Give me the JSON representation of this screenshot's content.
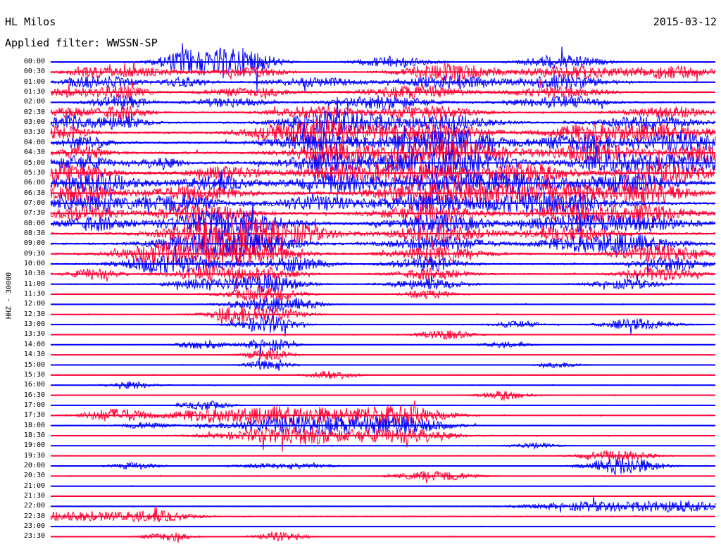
{
  "header": {
    "station": "HL Milos",
    "date": "2015-03-12",
    "filter": "Applied filter: WWSSN-SP"
  },
  "channel_label": "HHZ - 30000",
  "colors": {
    "blue": "#0000ff",
    "red": "#ff0033",
    "text": "#000000",
    "background": "#ffffff"
  },
  "chart_data": {
    "type": "line",
    "title": "HL Milos",
    "subtitle": "Applied filter: WWSSN-SP",
    "date": "2015-03-12",
    "ylabel": "HHZ - 30000",
    "y_tick_labels": [
      "00:00",
      "00:30",
      "01:00",
      "01:30",
      "02:00",
      "02:30",
      "03:00",
      "03:30",
      "04:00",
      "04:30",
      "05:00",
      "05:30",
      "06:00",
      "06:30",
      "07:00",
      "07:30",
      "08:00",
      "08:30",
      "09:00",
      "09:30",
      "10:00",
      "10:30",
      "11:00",
      "11:30",
      "12:00",
      "12:30",
      "13:00",
      "13:30",
      "14:00",
      "14:30",
      "15:00",
      "15:30",
      "16:00",
      "16:30",
      "17:00",
      "17:30",
      "18:00",
      "18:30",
      "19:00",
      "19:30",
      "20:00",
      "20:30",
      "21:00",
      "21:30",
      "22:00",
      "22:30",
      "23:00",
      "23:30"
    ],
    "trace_colors_alternate": [
      "blue",
      "red"
    ],
    "x_unit": "minutes within trace line",
    "xlim": [
      0,
      30
    ],
    "amplitude_scale": "relative (0-1)",
    "traces": [
      {
        "label": "00:00",
        "noise": 0.15,
        "bursts": [
          [
            6.4,
            1.4,
            6
          ],
          [
            8.8,
            1.3,
            6
          ],
          [
            15.5,
            1.6,
            2.5
          ],
          [
            23.1,
            1.7,
            3
          ]
        ]
      },
      {
        "label": "00:30",
        "noise": 0.2,
        "bursts": [
          [
            1.6,
            1,
            2
          ],
          [
            3.9,
            2,
            2
          ],
          [
            9,
            1.5,
            2.5
          ],
          [
            18,
            2,
            4
          ],
          [
            23.5,
            2,
            3
          ],
          [
            28,
            2,
            3
          ]
        ]
      },
      {
        "label": "01:00",
        "noise": 0.3,
        "bursts": [
          [
            1.5,
            1,
            2
          ],
          [
            3,
            1,
            2
          ],
          [
            6,
            1,
            2
          ],
          [
            12,
            2,
            2
          ],
          [
            18,
            2,
            3
          ],
          [
            23,
            2,
            3
          ]
        ]
      },
      {
        "label": "01:30",
        "noise": 0.3,
        "bursts": [
          [
            0.8,
            1,
            2
          ],
          [
            3.1,
            1.2,
            3
          ],
          [
            9,
            2,
            2
          ],
          [
            16.5,
            2,
            3
          ],
          [
            23,
            2,
            2.5
          ]
        ]
      },
      {
        "label": "02:00",
        "noise": 0.3,
        "bursts": [
          [
            3.1,
            1.2,
            3
          ],
          [
            8,
            1.5,
            2
          ],
          [
            15,
            2,
            3
          ],
          [
            23,
            2,
            2.5
          ]
        ]
      },
      {
        "label": "02:30",
        "noise": 0.3,
        "bursts": [
          [
            0.7,
            1,
            2
          ],
          [
            3.1,
            1.2,
            3
          ],
          [
            12,
            2,
            2.5
          ],
          [
            17,
            2,
            3
          ],
          [
            28,
            2,
            2.5
          ]
        ]
      },
      {
        "label": "03:00",
        "noise": 0.35,
        "bursts": [
          [
            0.8,
            1,
            3
          ],
          [
            3.1,
            1.2,
            3
          ],
          [
            12.2,
            2,
            3
          ],
          [
            14,
            2,
            3.5
          ],
          [
            18,
            2,
            3
          ],
          [
            27,
            2,
            3
          ]
        ]
      },
      {
        "label": "03:30",
        "noise": 0.4,
        "bursts": [
          [
            0.7,
            1,
            3
          ],
          [
            11,
            2,
            4
          ],
          [
            13.5,
            2,
            4
          ],
          [
            17.6,
            2,
            4
          ],
          [
            24.5,
            2,
            4
          ],
          [
            28,
            2,
            3
          ]
        ]
      },
      {
        "label": "04:00",
        "noise": 0.45,
        "bursts": [
          [
            1.5,
            1,
            3
          ],
          [
            12,
            2,
            4
          ],
          [
            16.5,
            2,
            4
          ],
          [
            18.8,
            2,
            4
          ],
          [
            24,
            2,
            4
          ],
          [
            28.5,
            2,
            4
          ]
        ]
      },
      {
        "label": "04:30",
        "noise": 0.5,
        "bursts": [
          [
            1.5,
            1,
            3
          ],
          [
            12.7,
            2,
            4
          ],
          [
            16.5,
            2,
            4
          ],
          [
            19,
            2,
            4
          ],
          [
            24.5,
            2,
            4
          ],
          [
            29.5,
            1.5,
            4
          ]
        ]
      },
      {
        "label": "05:00",
        "noise": 0.5,
        "bursts": [
          [
            1.3,
            1.5,
            3
          ],
          [
            5,
            1,
            2
          ],
          [
            12.5,
            2,
            4
          ],
          [
            16.5,
            2,
            4
          ],
          [
            19,
            2,
            4
          ],
          [
            25.5,
            2,
            4
          ],
          [
            29,
            1.5,
            4
          ]
        ]
      },
      {
        "label": "05:30",
        "noise": 0.55,
        "bursts": [
          [
            1,
            1.5,
            4
          ],
          [
            8,
            1.5,
            3
          ],
          [
            13.5,
            2,
            4
          ],
          [
            17,
            2,
            4
          ],
          [
            21.5,
            2,
            4
          ],
          [
            28,
            2,
            4
          ]
        ]
      },
      {
        "label": "06:00",
        "noise": 0.6,
        "bursts": [
          [
            2,
            2,
            4
          ],
          [
            7.5,
            1.5,
            3
          ],
          [
            13,
            2,
            4
          ],
          [
            17.6,
            2,
            4
          ],
          [
            21,
            2,
            4
          ],
          [
            26,
            2,
            4
          ]
        ]
      },
      {
        "label": "06:30",
        "noise": 0.6,
        "bursts": [
          [
            1.5,
            1.5,
            4
          ],
          [
            6.5,
            2,
            3
          ],
          [
            16.5,
            2,
            4
          ],
          [
            19.5,
            2,
            4
          ],
          [
            23,
            2,
            4
          ],
          [
            27,
            2,
            4
          ]
        ]
      },
      {
        "label": "07:00",
        "noise": 0.55,
        "bursts": [
          [
            1.5,
            1.5,
            3
          ],
          [
            5.5,
            2,
            4
          ],
          [
            12,
            2,
            3
          ],
          [
            17,
            2,
            4
          ],
          [
            21,
            2,
            3
          ],
          [
            23.5,
            2,
            4
          ]
        ]
      },
      {
        "label": "07:30",
        "noise": 0.5,
        "bursts": [
          [
            1.5,
            1.5,
            3
          ],
          [
            6.8,
            2,
            4
          ],
          [
            17,
            2,
            4
          ],
          [
            23.8,
            2,
            4
          ],
          [
            27,
            2,
            3
          ]
        ]
      },
      {
        "label": "08:00",
        "noise": 0.5,
        "bursts": [
          [
            2,
            1.5,
            3
          ],
          [
            7,
            2,
            4
          ],
          [
            9,
            2,
            3
          ],
          [
            17.5,
            2,
            4
          ],
          [
            23.5,
            2,
            4
          ],
          [
            27,
            2,
            3
          ]
        ]
      },
      {
        "label": "08:30",
        "noise": 0.45,
        "bursts": [
          [
            6.9,
            2,
            4
          ],
          [
            9,
            2,
            4
          ],
          [
            11,
            2,
            3
          ],
          [
            17.5,
            2,
            4
          ],
          [
            23.5,
            2,
            3
          ]
        ]
      },
      {
        "label": "09:00",
        "noise": 0.4,
        "bursts": [
          [
            6.8,
            2,
            4
          ],
          [
            9.2,
            2,
            4
          ],
          [
            17.5,
            2,
            3.5
          ],
          [
            24,
            2,
            3
          ],
          [
            26.5,
            2,
            3
          ]
        ]
      },
      {
        "label": "09:30",
        "noise": 0.4,
        "bursts": [
          [
            4.5,
            1.5,
            3
          ],
          [
            6.5,
            2,
            4
          ],
          [
            9,
            2,
            4
          ],
          [
            17.5,
            2,
            3
          ],
          [
            27.5,
            2,
            3.5
          ]
        ]
      },
      {
        "label": "10:00",
        "noise": 0.35,
        "bursts": [
          [
            4.5,
            1.5,
            2.5
          ],
          [
            6.5,
            2,
            3
          ],
          [
            10.9,
            1.5,
            3
          ],
          [
            17,
            1.5,
            3
          ],
          [
            28,
            1.5,
            3
          ]
        ]
      },
      {
        "label": "10:30",
        "noise": 0.3,
        "bursts": [
          [
            2,
            1,
            2.5
          ],
          [
            7,
            1.5,
            3
          ],
          [
            9.5,
            1.5,
            3
          ],
          [
            17.2,
            1.5,
            2.5
          ],
          [
            27.5,
            1.5,
            3
          ]
        ]
      },
      {
        "label": "11:00",
        "noise": 0.25,
        "bursts": [
          [
            7,
            1.5,
            2.5
          ],
          [
            9.8,
            1.5,
            4
          ],
          [
            17,
            1.5,
            2.5
          ],
          [
            26,
            1.5,
            2
          ]
        ]
      },
      {
        "label": "11:30",
        "noise": 0.2,
        "bursts": [
          [
            9.6,
            1.5,
            3.5
          ],
          [
            17,
            1,
            2
          ]
        ]
      },
      {
        "label": "12:00",
        "noise": 0.2,
        "bursts": [
          [
            9.6,
            1.5,
            3
          ],
          [
            11.5,
            1,
            1.5
          ]
        ]
      },
      {
        "label": "12:30",
        "noise": 0.18,
        "bursts": [
          [
            8.2,
            1.2,
            3
          ],
          [
            9.8,
            1.5,
            3
          ]
        ]
      },
      {
        "label": "13:00",
        "noise": 0.18,
        "bursts": [
          [
            9.8,
            1.2,
            4
          ],
          [
            21,
            1,
            1.5
          ],
          [
            26.5,
            1.5,
            2.5
          ]
        ]
      },
      {
        "label": "13:30",
        "noise": 0.15,
        "bursts": [
          [
            17.8,
            1.2,
            2
          ]
        ]
      },
      {
        "label": "14:00",
        "noise": 0.15,
        "bursts": [
          [
            6.8,
            1,
            2
          ],
          [
            9.8,
            1,
            3
          ],
          [
            20.5,
            1,
            1.2
          ]
        ]
      },
      {
        "label": "14:30",
        "noise": 0.15,
        "bursts": [
          [
            9.8,
            1,
            2.5
          ]
        ]
      },
      {
        "label": "15:00",
        "noise": 0.15,
        "bursts": [
          [
            9.8,
            1,
            2
          ],
          [
            23,
            1,
            1.2
          ]
        ]
      },
      {
        "label": "15:30",
        "noise": 0.15,
        "bursts": [
          [
            12.7,
            1,
            2
          ]
        ]
      },
      {
        "label": "16:00",
        "noise": 0.15,
        "bursts": [
          [
            3.7,
            1,
            1.5
          ]
        ]
      },
      {
        "label": "16:30",
        "noise": 0.15,
        "bursts": [
          [
            20.5,
            1,
            2
          ]
        ]
      },
      {
        "label": "17:00",
        "noise": 0.15,
        "bursts": [
          [
            7,
            1,
            2
          ]
        ]
      },
      {
        "label": "17:30",
        "noise": 0.2,
        "bursts": [
          [
            3,
            1.5,
            3
          ],
          [
            7,
            1.5,
            2
          ],
          [
            11,
            3.5,
            4
          ],
          [
            15.8,
            2,
            4
          ]
        ]
      },
      {
        "label": "18:00",
        "noise": 0.15,
        "bursts": [
          [
            4.2,
            1,
            1.5
          ],
          [
            11.5,
            3.5,
            4
          ],
          [
            15.8,
            2,
            3.5
          ]
        ]
      },
      {
        "label": "18:30",
        "noise": 0.2,
        "bursts": [
          [
            11,
            3,
            4
          ],
          [
            16,
            2,
            3
          ]
        ]
      },
      {
        "label": "19:00",
        "noise": 0.15,
        "bursts": [
          [
            21.8,
            1,
            1.2
          ]
        ]
      },
      {
        "label": "19:30",
        "noise": 0.15,
        "bursts": [
          [
            25.5,
            1.5,
            2.5
          ]
        ]
      },
      {
        "label": "20:00",
        "noise": 0.15,
        "bursts": [
          [
            3.8,
            1,
            1.5
          ],
          [
            10.5,
            2,
            1.2
          ],
          [
            25.9,
            1.5,
            4
          ]
        ]
      },
      {
        "label": "20:30",
        "noise": 0.15,
        "bursts": [
          [
            17.4,
            1.5,
            2.5
          ]
        ]
      },
      {
        "label": "21:00",
        "noise": 0.12,
        "bursts": []
      },
      {
        "label": "21:30",
        "noise": 0.12,
        "bursts": []
      },
      {
        "label": "22:00",
        "noise": 0.2,
        "bursts": [
          [
            24.7,
            3,
            2
          ],
          [
            28.5,
            2,
            2
          ]
        ]
      },
      {
        "label": "22:30",
        "noise": 0.25,
        "bursts": [
          [
            1,
            3,
            2
          ],
          [
            4.8,
            1.5,
            2
          ]
        ]
      },
      {
        "label": "23:00",
        "noise": 0.12,
        "bursts": []
      },
      {
        "label": "23:30",
        "noise": 0.15,
        "bursts": [
          [
            5.3,
            1,
            2
          ],
          [
            10.4,
            1,
            2
          ]
        ]
      }
    ]
  }
}
